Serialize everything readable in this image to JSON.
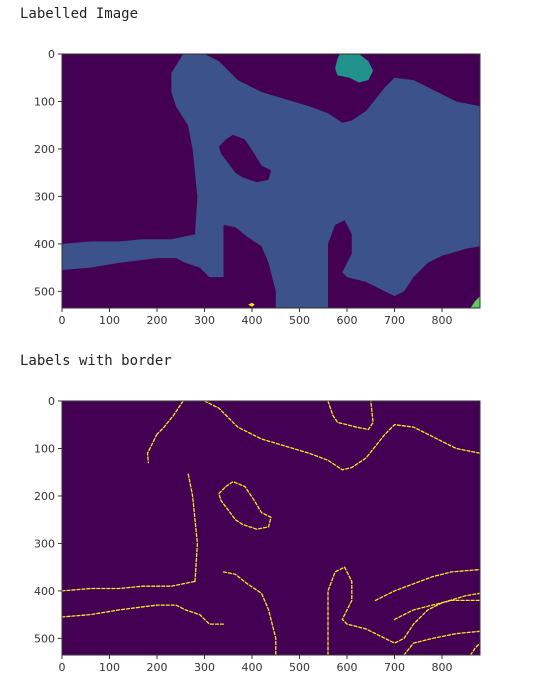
{
  "chart_data": [
    {
      "type": "heatmap",
      "title": "Labelled Image",
      "xlabel": "",
      "ylabel": "",
      "xlim": [
        0,
        880
      ],
      "ylim": [
        535,
        0
      ],
      "x_ticks": [
        0,
        100,
        200,
        300,
        400,
        500,
        600,
        700,
        800
      ],
      "y_ticks": [
        0,
        100,
        200,
        300,
        400,
        500
      ],
      "colormap": "viridis",
      "colors": {
        "background": "#440154",
        "region_main": "#3b528b",
        "region_teal": "#21918c",
        "region_green": "#5ec962",
        "region_yellow": "#fde725"
      },
      "grid": false
    },
    {
      "type": "heatmap",
      "title": "Labels with border",
      "xlabel": "",
      "ylabel": "",
      "xlim": [
        0,
        880
      ],
      "ylim": [
        535,
        0
      ],
      "x_ticks": [
        0,
        100,
        200,
        300,
        400,
        500,
        600,
        700,
        800
      ],
      "y_ticks": [
        0,
        100,
        200,
        300,
        400,
        500
      ],
      "colormap": "viridis",
      "colors": {
        "background": "#440154",
        "border": "#fde725"
      },
      "grid": false
    }
  ]
}
